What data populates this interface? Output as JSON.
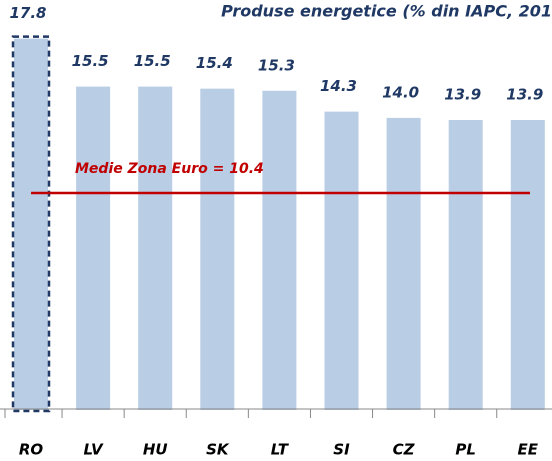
{
  "chart_data": {
    "type": "bar",
    "title": "Produse energetice (% din IAPC, 201",
    "categories": [
      "RO",
      "LV",
      "HU",
      "SK",
      "LT",
      "SI",
      "CZ",
      "PL",
      "EE"
    ],
    "values": [
      17.8,
      15.5,
      15.5,
      15.4,
      15.3,
      14.3,
      14.0,
      13.9,
      13.9
    ],
    "value_labels": [
      "17.8",
      "15.5",
      "15.5",
      "15.4",
      "15.3",
      "14.3",
      "14.0",
      "13.9",
      "13.9"
    ],
    "color": "#b9cde5",
    "highlight": "RO",
    "highlight_color": "#1f3864",
    "ylim": [
      0,
      19.65
    ],
    "reference_line": {
      "value": 10.4,
      "label": "Medie Zona Euro = 10.4",
      "color": "#c00000"
    }
  }
}
